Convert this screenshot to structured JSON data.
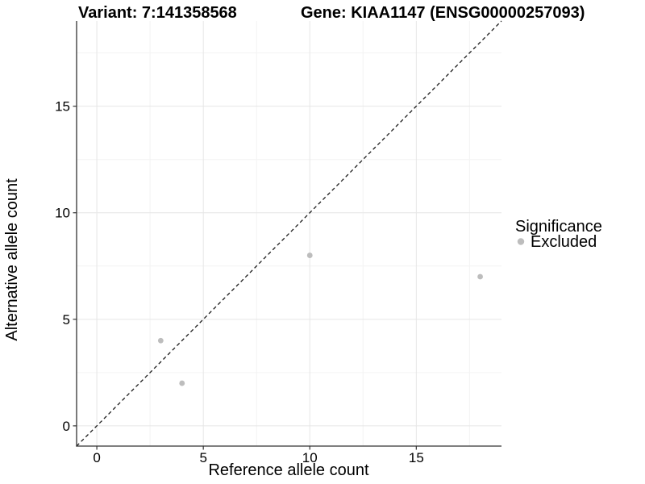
{
  "chart_data": {
    "type": "scatter",
    "title_left": "Variant: 7:141358568",
    "title_right": "Gene: KIAA1147 (ENSG00000257093)",
    "xlabel": "Reference allele count",
    "ylabel": "Alternative allele count",
    "xlim": [
      -0.95,
      19
    ],
    "ylim": [
      -0.95,
      19
    ],
    "x_ticks": [
      0,
      5,
      10,
      15
    ],
    "y_ticks": [
      0,
      5,
      10,
      15
    ],
    "x_minor_ticks": [
      2.5,
      7.5,
      12.5,
      17.5
    ],
    "y_minor_ticks": [
      2.5,
      7.5,
      12.5,
      17.5
    ],
    "grid": "major+minor",
    "series": [
      {
        "name": "Excluded",
        "color": "#bdbdbd",
        "points": [
          [
            3,
            4
          ],
          [
            4,
            2
          ],
          [
            10,
            8
          ],
          [
            18,
            7
          ]
        ]
      }
    ],
    "abline": {
      "slope": 1,
      "intercept": 0,
      "style": "dashed",
      "color": "#1a1a1a"
    },
    "legend": {
      "title": "Significance",
      "position": "right",
      "items": [
        {
          "label": "Excluded",
          "color": "#bdbdbd"
        }
      ]
    }
  },
  "colors": {
    "background": "#ffffff",
    "axis_line": "#333333",
    "major_grid": "#e6e6e6",
    "minor_grid": "#f3f3f3",
    "text": "#000000"
  }
}
